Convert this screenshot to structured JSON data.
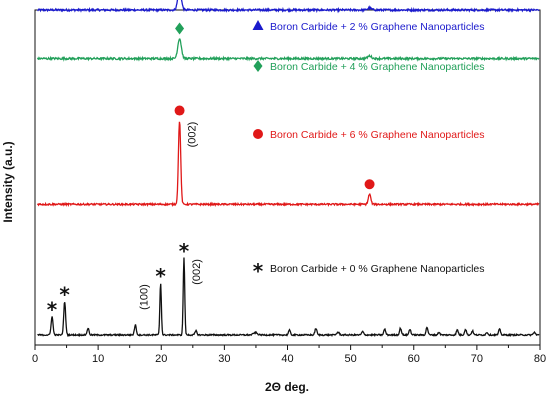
{
  "chart_data": {
    "type": "line",
    "xlabel": "2Θ deg.",
    "ylabel": "Intensity (a.u.)",
    "xlim": [
      0,
      80
    ],
    "xticks": [
      "0",
      "10",
      "20",
      "30",
      "40",
      "50",
      "60",
      "70",
      "80"
    ],
    "grid": false,
    "series": [
      {
        "name": "Boron Carbide + 2 % Graphene Nanoparticles",
        "color": "#1a1acc",
        "marker": "triangle",
        "baseline": 1.0,
        "noise": 0.006,
        "peaks": [
          {
            "x": 22.9,
            "h": 0.06,
            "w": 0.28
          },
          {
            "x": 53.0,
            "h": 0.006,
            "w": 0.3
          }
        ],
        "marked_peaks": [
          22.9
        ]
      },
      {
        "name": "Boron Carbide + 4 % Graphene Nanoparticles",
        "color": "#22a05a",
        "marker": "diamond",
        "baseline": 0.855,
        "noise": 0.006,
        "peaks": [
          {
            "x": 22.9,
            "h": 0.06,
            "w": 0.28
          },
          {
            "x": 53.0,
            "h": 0.008,
            "w": 0.3
          }
        ],
        "marked_peaks": [
          22.9
        ]
      },
      {
        "name": "Boron Carbide + 6 % Graphene Nanoparticles",
        "color": "#e01818",
        "marker": "circle",
        "baseline": 0.42,
        "noise": 0.005,
        "peaks": [
          {
            "x": 22.9,
            "h": 0.25,
            "w": 0.18
          },
          {
            "x": 53.0,
            "h": 0.03,
            "w": 0.2
          }
        ],
        "marked_peaks": [
          22.9,
          53.0
        ],
        "peak_labels": [
          {
            "x": 22.9,
            "text": "(002)"
          }
        ]
      },
      {
        "name": "Boron Carbide + 0 % Graphene Nanoparticles",
        "color": "#111111",
        "marker": "star",
        "baseline": 0.03,
        "noise": 0.004,
        "peaks": [
          {
            "x": 2.7,
            "h": 0.055,
            "w": 0.15
          },
          {
            "x": 4.7,
            "h": 0.1,
            "w": 0.15
          },
          {
            "x": 8.4,
            "h": 0.02,
            "w": 0.15
          },
          {
            "x": 15.9,
            "h": 0.03,
            "w": 0.15
          },
          {
            "x": 19.9,
            "h": 0.155,
            "w": 0.12
          },
          {
            "x": 23.6,
            "h": 0.23,
            "w": 0.12
          },
          {
            "x": 25.5,
            "h": 0.012,
            "w": 0.15
          },
          {
            "x": 34.9,
            "h": 0.007,
            "w": 0.3
          },
          {
            "x": 40.3,
            "h": 0.014,
            "w": 0.15
          },
          {
            "x": 44.5,
            "h": 0.02,
            "w": 0.15
          },
          {
            "x": 48.0,
            "h": 0.008,
            "w": 0.2
          },
          {
            "x": 51.9,
            "h": 0.01,
            "w": 0.15
          },
          {
            "x": 55.4,
            "h": 0.017,
            "w": 0.15
          },
          {
            "x": 57.9,
            "h": 0.02,
            "w": 0.15
          },
          {
            "x": 59.4,
            "h": 0.017,
            "w": 0.15
          },
          {
            "x": 62.1,
            "h": 0.023,
            "w": 0.15
          },
          {
            "x": 64.0,
            "h": 0.008,
            "w": 0.15
          },
          {
            "x": 66.9,
            "h": 0.015,
            "w": 0.15
          },
          {
            "x": 68.2,
            "h": 0.017,
            "w": 0.15
          },
          {
            "x": 69.3,
            "h": 0.012,
            "w": 0.15
          },
          {
            "x": 71.6,
            "h": 0.008,
            "w": 0.15
          },
          {
            "x": 73.6,
            "h": 0.017,
            "w": 0.15
          },
          {
            "x": 79.1,
            "h": 0.008,
            "w": 0.15
          }
        ],
        "marked_peaks": [
          2.7,
          4.7,
          19.9,
          23.6
        ],
        "peak_labels": [
          {
            "x": 19.9,
            "text": "(100)"
          },
          {
            "x": 23.6,
            "text": "(002)"
          }
        ]
      }
    ]
  }
}
